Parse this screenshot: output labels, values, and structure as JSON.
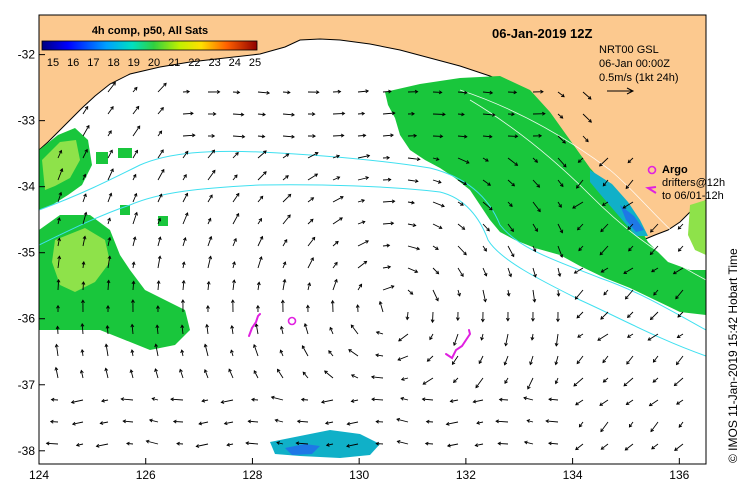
{
  "header": {
    "composite_label": "4h comp, p50, All Sats",
    "date_label": "06-Jan-2019 12Z"
  },
  "colorbar": {
    "labels": [
      "15",
      "16",
      "17",
      "18",
      "19",
      "20",
      "21",
      "22",
      "23",
      "24",
      "25"
    ],
    "range": [
      15,
      25
    ]
  },
  "currents_legend": {
    "line1": "NRT00 GSL",
    "line2": "06-Jan 00:00Z",
    "line3": "0.5m/s (1kt 24h)"
  },
  "argo_legend": {
    "title": "Argo",
    "line1": "drifters@12h",
    "line2": "to 06/01-12h"
  },
  "credit": "© IMOS 11-Jan-2019 15:42 Hobart Time",
  "axes": {
    "lon_ticks": [
      "124",
      "126",
      "128",
      "130",
      "132",
      "134",
      "136"
    ],
    "lat_ticks": [
      "-32",
      "-33",
      "-34",
      "-35",
      "-36",
      "-37",
      "-38"
    ],
    "lon_range": [
      124,
      136.5
    ],
    "lat_range": [
      -38.2,
      -31.4
    ]
  },
  "colors": {
    "land": "#fcc98f",
    "sst_green": "#19c63c",
    "sst_light": "#8ee24a",
    "sst_cyan": "#10b0c8",
    "sst_blue": "#1e78e6",
    "argo": "#e020e0",
    "contour": "#40e0f0"
  }
}
